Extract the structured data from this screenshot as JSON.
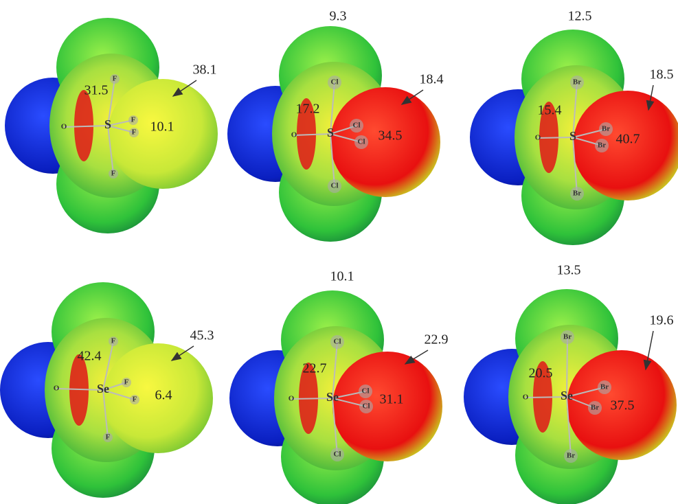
{
  "panels": [
    {
      "atoms": [
        "S",
        "O",
        "F",
        "F",
        "F",
        "F"
      ],
      "values": [
        "31.5",
        "10.1",
        "38.1"
      ]
    },
    {
      "atoms": [
        "S",
        "O",
        "Cl",
        "Cl",
        "Cl",
        "Cl"
      ],
      "values": [
        "9.3",
        "17.2",
        "34.5",
        "18.4"
      ]
    },
    {
      "atoms": [
        "S",
        "O",
        "Br",
        "Br",
        "Br",
        "Br"
      ],
      "values": [
        "12.5",
        "15.4",
        "40.7",
        "18.5"
      ]
    },
    {
      "atoms": [
        "Se",
        "O",
        "F",
        "F",
        "F",
        "F"
      ],
      "values": [
        "42.4",
        "6.4",
        "45.3"
      ]
    },
    {
      "atoms": [
        "Se",
        "O",
        "Cl",
        "Cl",
        "Cl",
        "Cl"
      ],
      "values": [
        "10.1",
        "22.7",
        "31.1",
        "22.9"
      ]
    },
    {
      "atoms": [
        "Se",
        "O",
        "Br",
        "Br",
        "Br",
        "Br"
      ],
      "values": [
        "13.5",
        "20.5",
        "37.5",
        "19.6"
      ]
    }
  ]
}
